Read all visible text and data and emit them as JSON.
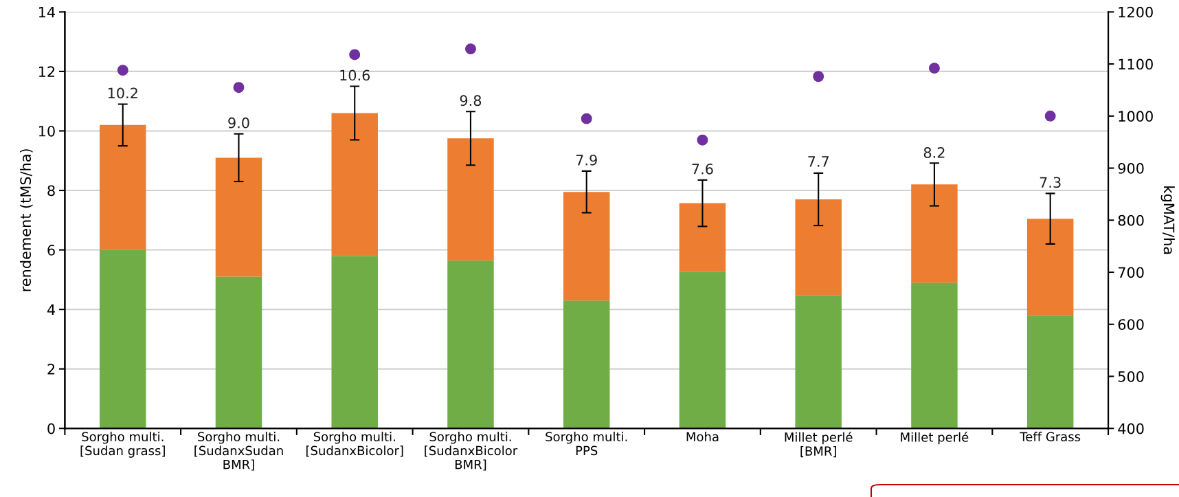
{
  "chart_data": {
    "type": "bar",
    "stacked": true,
    "ylabel": "rendement (tMS/ha)",
    "y2label": "kgMAT/ha",
    "categories": [
      "Sorgho multi.\n[Sudan grass]",
      "Sorgho multi.\n[SudanxSudan\nBMR]",
      "Sorgho multi.\n[SudanxBicolor]",
      "Sorgho multi.\n[SudanxBicolor\nBMR]",
      "Sorgho multi.\nPPS",
      "Moha",
      "Millet perlé\n[BMR]",
      "Millet perlé",
      "Teff Grass"
    ],
    "series": [
      {
        "color": "#70ad47",
        "values": [
          6.0,
          5.1,
          5.8,
          5.65,
          4.3,
          5.27,
          4.48,
          4.9,
          3.8
        ]
      },
      {
        "color": "#ed7d31",
        "values": [
          4.2,
          4.0,
          4.8,
          4.1,
          3.65,
          2.3,
          3.22,
          3.3,
          3.25
        ],
        "errors": [
          0.7,
          0.8,
          0.9,
          0.9,
          0.7,
          0.78,
          0.88,
          0.72,
          0.85
        ]
      },
      {
        "type": "scatter",
        "axis": "y2",
        "color": "#7030a0",
        "marker": "circle",
        "values": [
          1088,
          1055,
          1118,
          1129,
          995,
          954,
          1076,
          1092,
          1000
        ]
      }
    ],
    "annotations": [
      {
        "text": "10.2",
        "x": "Sorgho multi.\n[Sudan grass]",
        "y": 10.9
      },
      {
        "text": "9.0",
        "x": "Sorgho multi.\n[SudanxSudan\nBMR]",
        "y": 9.9
      },
      {
        "text": "10.6",
        "x": "Sorgho multi.\n[SudanxBicolor]",
        "y": 11.5
      },
      {
        "text": "9.8",
        "x": "Sorgho multi.\n[SudanxBicolor\nBMR]",
        "y": 10.65
      },
      {
        "text": "7.9",
        "x": "Sorgho multi.\nPPS",
        "y": 8.65
      },
      {
        "text": "7.6",
        "x": "Moha",
        "y": 8.35
      },
      {
        "text": "7.7",
        "x": "Millet perlé\n[BMR]",
        "y": 8.6
      },
      {
        "text": "8.2",
        "x": "Millet perlé",
        "y": 8.9
      },
      {
        "text": "7.3",
        "x": "Teff Grass",
        "y": 7.9
      }
    ],
    "ylim": [
      0,
      14
    ],
    "yticks": [
      0,
      2,
      4,
      6,
      8,
      10,
      12,
      14
    ],
    "y2lim": [
      400,
      1200
    ],
    "y2ticks": [
      400,
      500,
      600,
      700,
      800,
      900,
      1000,
      1100,
      1200
    ],
    "grid": "y",
    "legend": false
  }
}
